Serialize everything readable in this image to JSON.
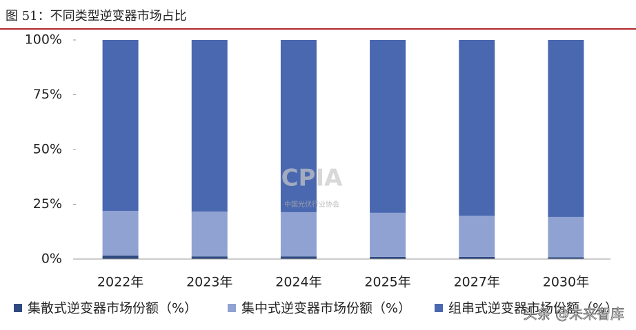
{
  "chart_data": {
    "type": "stacked_bar",
    "title": "图 51：不同类型逆变器市场占比",
    "categories": [
      "2022年",
      "2023年",
      "2024年",
      "2025年",
      "2027年",
      "2030年"
    ],
    "series": [
      {
        "name": "集散式逆变器市场份额（%）",
        "color": "#2f4a7f",
        "values": [
          1.6,
          1.2,
          1.2,
          1.0,
          1.0,
          0.8
        ]
      },
      {
        "name": "集中式逆变器市场份额（%）",
        "color": "#8fa2d2",
        "values": [
          20.4,
          20.5,
          20.2,
          20.1,
          18.8,
          18.4
        ]
      },
      {
        "name": "组串式逆变器市场份额（%）",
        "color": "#4a68b0",
        "values": [
          78.0,
          78.3,
          78.6,
          78.9,
          80.2,
          80.8
        ]
      }
    ],
    "ylim": [
      0,
      100
    ],
    "yticks": [
      {
        "value": 0,
        "label": "0%"
      },
      {
        "value": 25,
        "label": "25%"
      },
      {
        "value": 50,
        "label": "50%"
      },
      {
        "value": 75,
        "label": "75%"
      },
      {
        "value": 100,
        "label": "100%"
      }
    ],
    "grid": false,
    "watermarks": [
      "CPIA",
      "中国光伏行业协会",
      "头条 @未来智库"
    ]
  }
}
